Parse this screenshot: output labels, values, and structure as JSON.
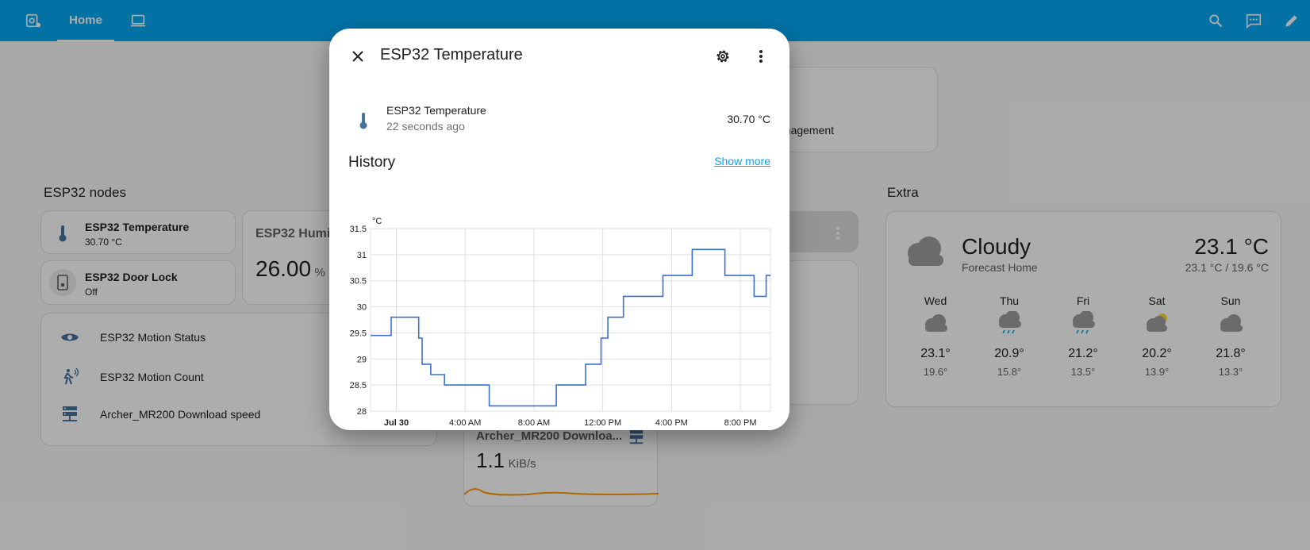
{
  "topbar": {
    "tab_home": "Home",
    "icons": [
      "camera-cog-icon",
      "laptop-icon",
      "search-icon",
      "comment-processing-icon",
      "pencil-icon"
    ]
  },
  "dashboard": {
    "esp32_section": "ESP32 nodes",
    "extra_section": "Extra",
    "tiles": [
      {
        "name": "ESP32 Temperature",
        "state": "30.70 °C",
        "icon": "thermometer-icon"
      },
      {
        "name": "ESP32 Door Lock",
        "state": "Off",
        "icon": "door-lock-icon"
      }
    ],
    "humidity_card": {
      "name": "ESP32 Humic",
      "value": "26.00",
      "unit": "%"
    },
    "entities": [
      {
        "label": "ESP32 Motion Status",
        "icon": "eye-icon"
      },
      {
        "label": "ESP32 Motion Count",
        "icon": "motion-sensor-icon"
      },
      {
        "label": "Archer_MR200 Download speed",
        "icon": "server-network-icon"
      }
    ],
    "mgmt_fragment": "anagement",
    "download_card": {
      "name": "Archer_MR200 Downloa...",
      "value": "1.1",
      "unit": "KiB/s"
    },
    "weather": {
      "condition": "Cloudy",
      "source": "Forecast Home",
      "temperature": "23.1 °C",
      "hi_lo": "23.1 °C / 19.6 °C",
      "forecast": [
        {
          "day": "Wed",
          "hi": "23.1°",
          "lo": "19.6°",
          "icon": "cloudy-icon"
        },
        {
          "day": "Thu",
          "hi": "20.9°",
          "lo": "15.8°",
          "icon": "rainy-icon"
        },
        {
          "day": "Fri",
          "hi": "21.2°",
          "lo": "13.5°",
          "icon": "rainy-icon"
        },
        {
          "day": "Sat",
          "hi": "20.2°",
          "lo": "13.9°",
          "icon": "partly-cloudy-icon"
        },
        {
          "day": "Sun",
          "hi": "21.8°",
          "lo": "13.3°",
          "icon": "cloudy-icon"
        }
      ]
    }
  },
  "dialog": {
    "title": "ESP32 Temperature",
    "entity_name": "ESP32 Temperature",
    "entity_time": "22 seconds ago",
    "entity_value": "30.70 °C",
    "history_label": "History",
    "show_more": "Show more"
  },
  "chart_data": {
    "type": "line",
    "ylabel": "°C",
    "ylim": [
      28,
      31.5
    ],
    "yticks": [
      "31.5",
      "31",
      "30.5",
      "30",
      "29.5",
      "29",
      "28.5",
      "28"
    ],
    "xlim": [
      -1.5,
      21.75
    ],
    "xticks": [
      {
        "label": "Jul 30",
        "hour": 0,
        "bold": true
      },
      {
        "label": "4:00 AM",
        "hour": 4
      },
      {
        "label": "8:00 AM",
        "hour": 8
      },
      {
        "label": "12:00 PM",
        "hour": 12
      },
      {
        "label": "4:00 PM",
        "hour": 16
      },
      {
        "label": "8:00 PM",
        "hour": 20
      }
    ],
    "grid": true,
    "color": "#3b6fd4",
    "series": [
      {
        "x": [
          -1.5,
          -0.3,
          -0.3,
          0.7,
          0.7,
          1.3,
          1.3,
          1.5,
          1.5,
          2.0,
          2.0,
          2.8,
          2.8,
          3.1,
          3.1,
          5.4,
          5.4,
          6.2,
          6.2,
          8.0,
          8.0,
          9.3,
          9.3,
          9.5,
          9.5,
          11.0,
          11.0,
          11.9,
          11.9,
          12.3,
          12.3,
          12.8,
          12.8,
          13.2,
          13.2,
          14.0,
          14.0,
          15.5,
          15.5,
          17.2,
          17.2,
          19.1,
          19.1,
          19.9,
          19.9,
          20.8,
          20.8,
          21.5,
          21.5,
          21.75
        ],
        "y": [
          29.45,
          29.45,
          29.8,
          29.8,
          29.8,
          29.8,
          29.4,
          29.4,
          28.9,
          28.9,
          28.7,
          28.7,
          28.5,
          28.5,
          28.5,
          28.5,
          28.1,
          28.1,
          28.1,
          28.1,
          28.1,
          28.1,
          28.5,
          28.5,
          28.5,
          28.5,
          28.9,
          28.9,
          29.4,
          29.4,
          29.8,
          29.8,
          29.8,
          29.8,
          30.2,
          30.2,
          30.2,
          30.2,
          30.6,
          30.6,
          31.1,
          31.1,
          30.6,
          30.6,
          30.6,
          30.6,
          30.2,
          30.2,
          30.6,
          30.6
        ]
      }
    ]
  }
}
